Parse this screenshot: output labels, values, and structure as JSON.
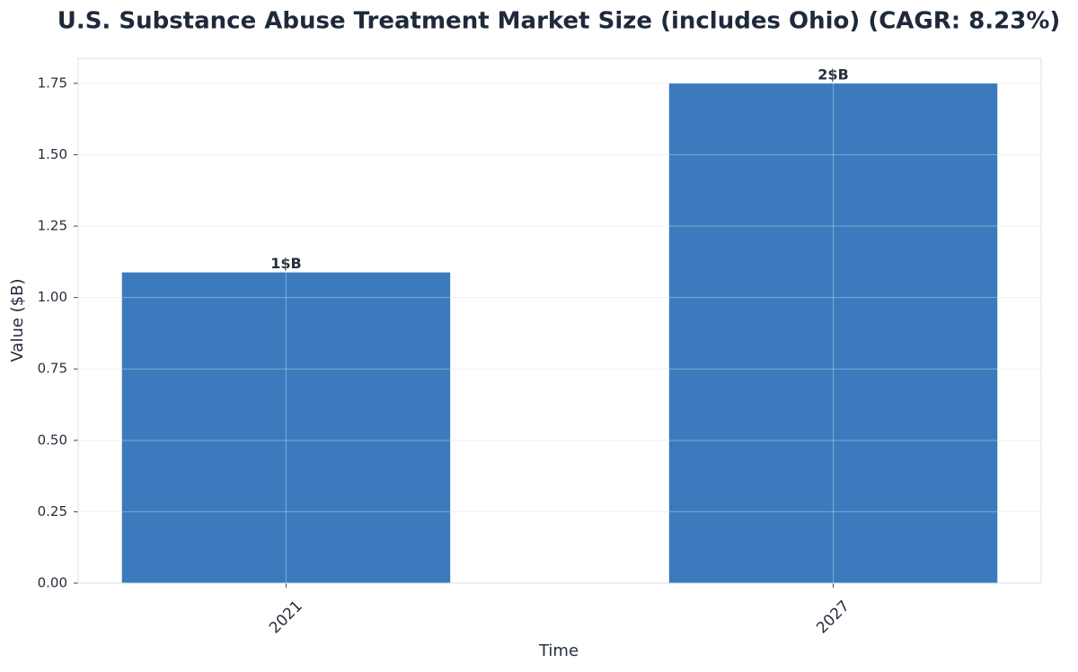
{
  "chart_data": {
    "type": "bar",
    "title": "U.S. Substance Abuse Treatment Market Size (includes Ohio) (CAGR: 8.23%)",
    "xlabel": "Time",
    "ylabel": "Value ($B)",
    "categories": [
      "2021",
      "2027"
    ],
    "values": [
      1.088,
      1.75
    ],
    "value_labels": [
      "1$B",
      "2$B"
    ],
    "color": "#3b7bbd",
    "ylim": [
      0,
      1.8375
    ],
    "yticks": [
      {
        "value": 0,
        "label": "0.00"
      },
      0.25,
      {
        "value": 0.5,
        "label": "0.50"
      },
      0.75,
      {
        "value": 1,
        "label": "1.00"
      },
      1.25,
      {
        "value": 1.5,
        "label": "1.50"
      },
      1.75
    ],
    "grid": true
  }
}
